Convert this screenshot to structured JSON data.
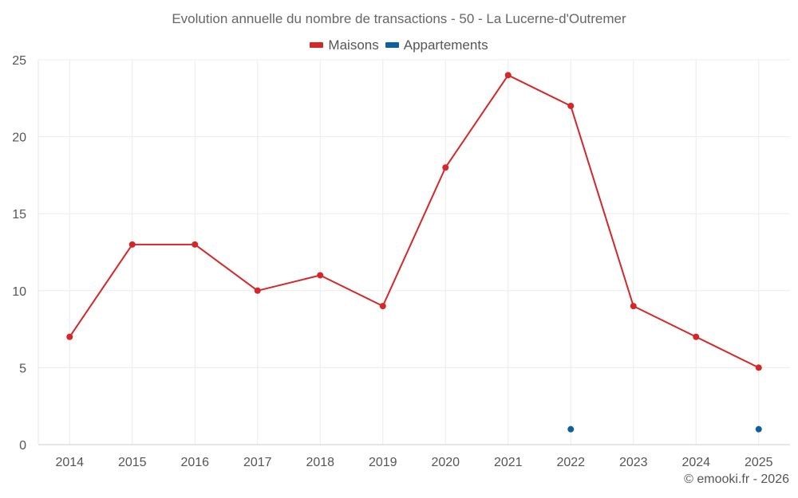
{
  "chart_data": {
    "type": "line",
    "title": "Evolution annuelle du nombre de transactions - 50 - La Lucerne-d'Outremer",
    "categories": [
      "2014",
      "2015",
      "2016",
      "2017",
      "2018",
      "2019",
      "2020",
      "2021",
      "2022",
      "2023",
      "2024",
      "2025"
    ],
    "series": [
      {
        "name": "Maisons",
        "color": "#d62728",
        "values": [
          7,
          13,
          13,
          10,
          11,
          9,
          18,
          24,
          22,
          9,
          7,
          5
        ]
      },
      {
        "name": "Appartements",
        "color": "#0e5fa0",
        "values": [
          null,
          null,
          null,
          null,
          null,
          null,
          null,
          null,
          1,
          null,
          null,
          1
        ]
      }
    ],
    "ylim": [
      0,
      25
    ],
    "yticks": [
      0,
      5,
      10,
      15,
      20,
      25
    ],
    "grid": true,
    "legend_position": "top-center"
  },
  "credits": "© emooki.fr - 2026"
}
